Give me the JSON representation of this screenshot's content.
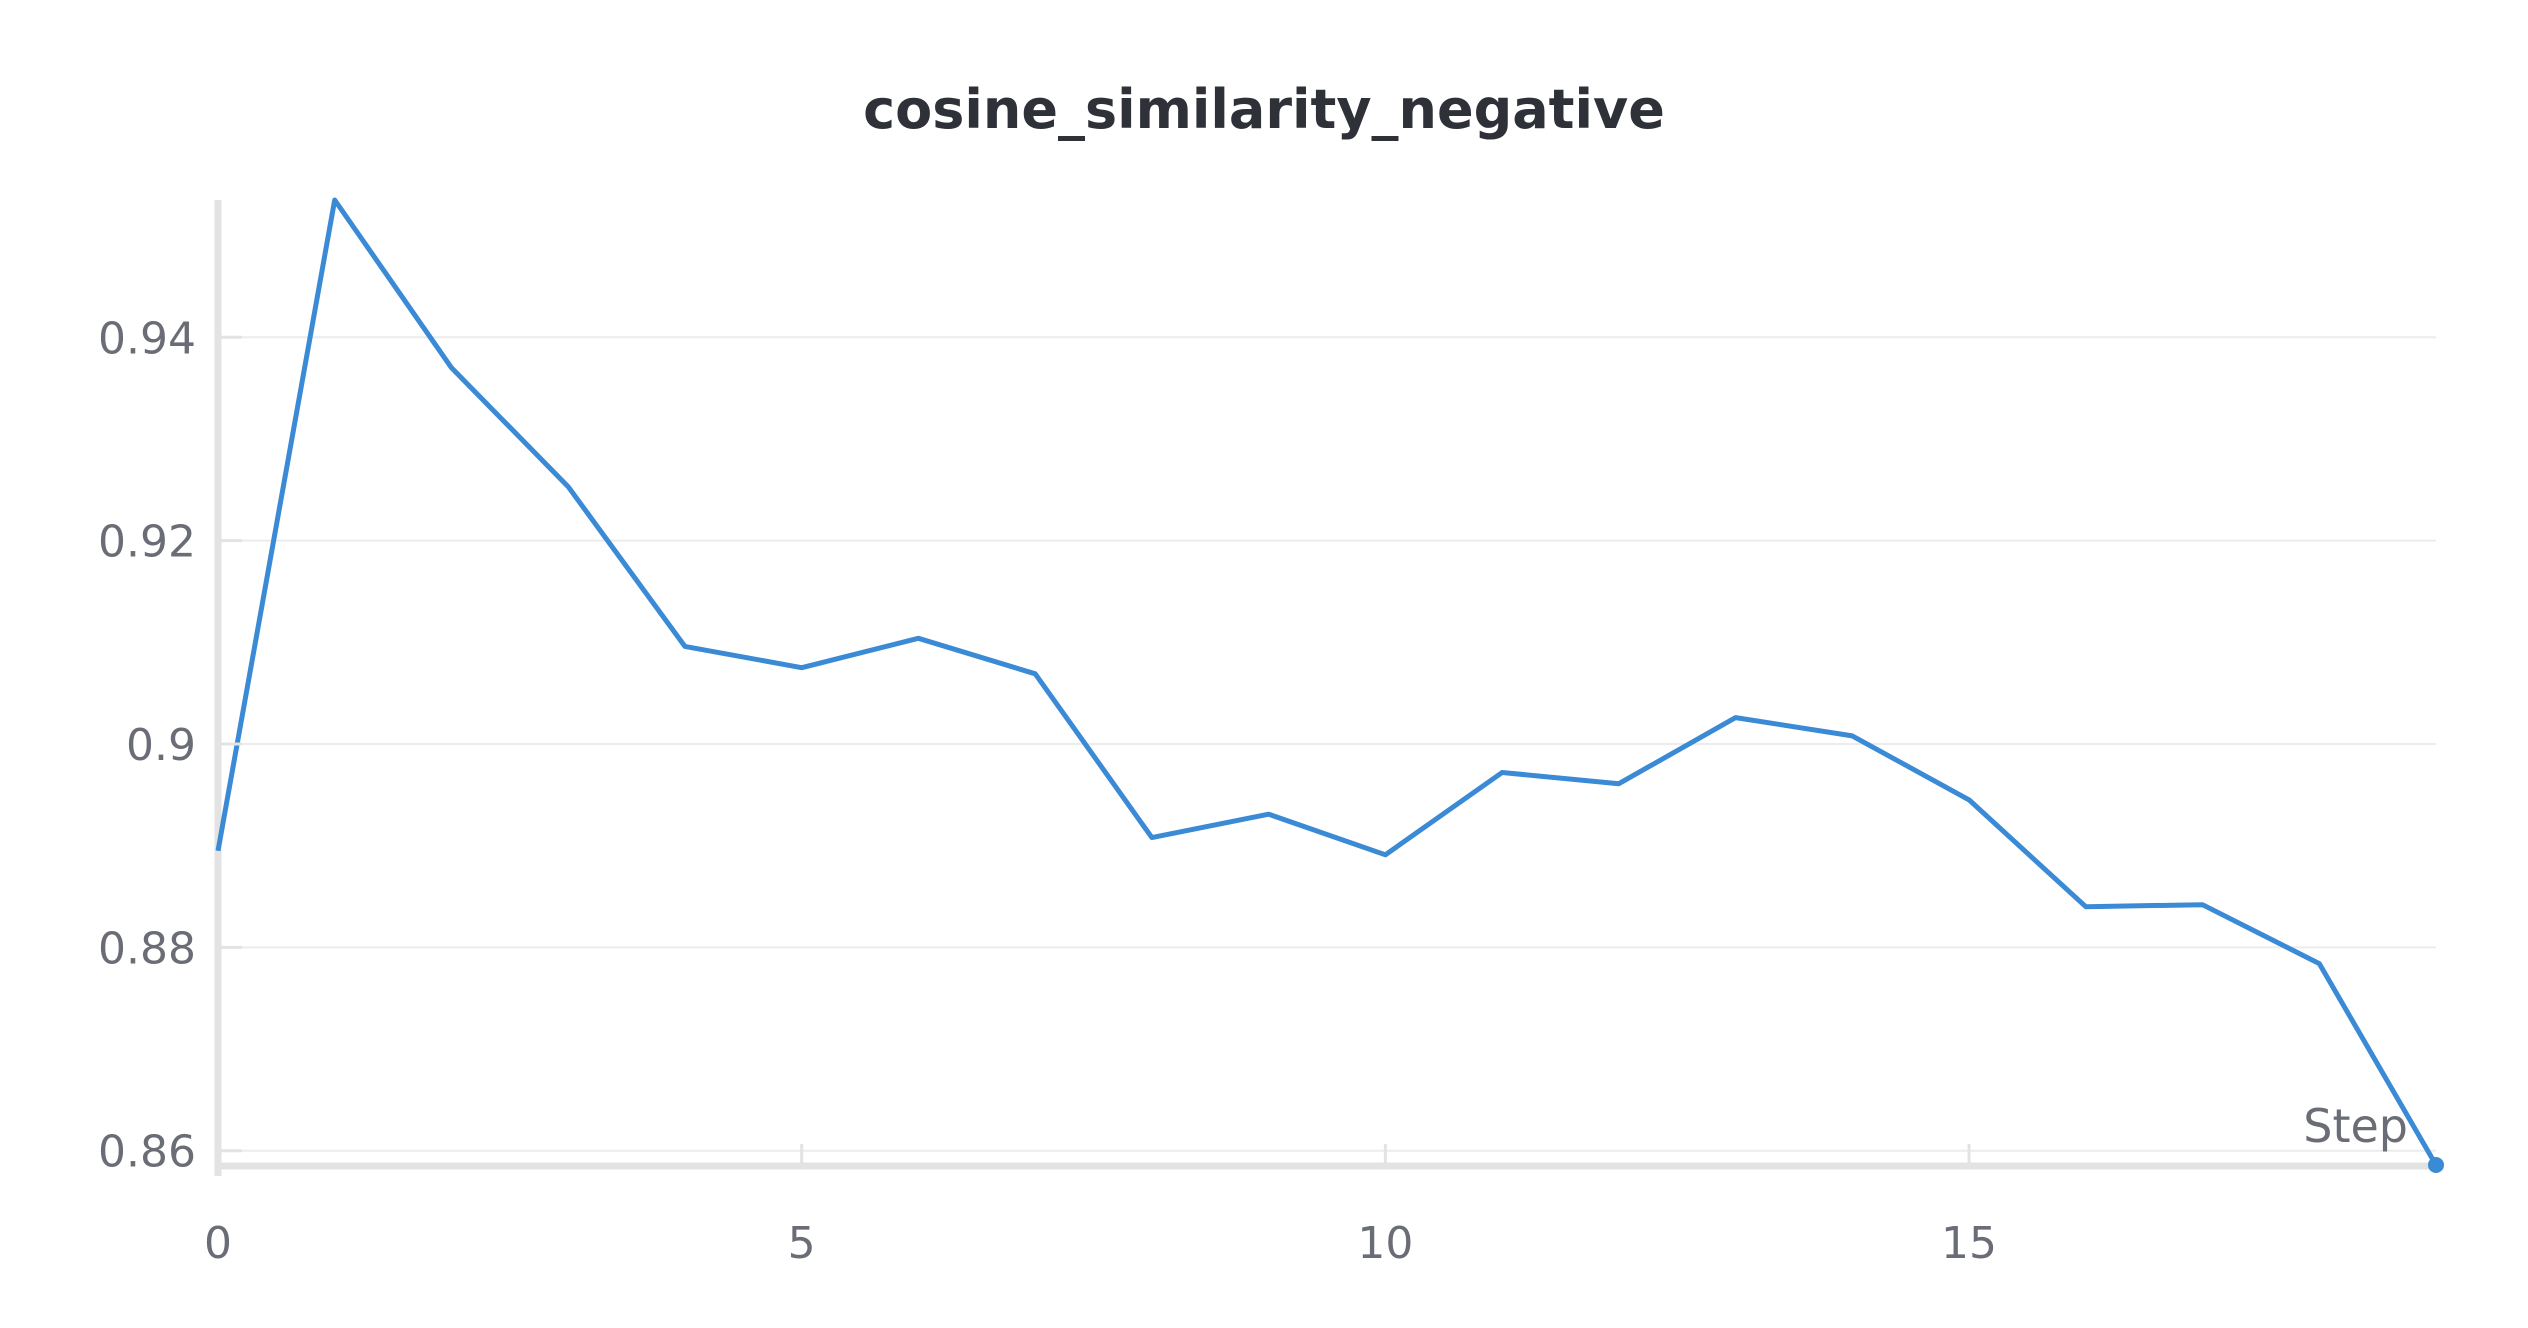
{
  "chart_data": {
    "type": "line",
    "title": "cosine_similarity_negative",
    "xlabel": "Step",
    "ylabel": "",
    "xlim": [
      0,
      19
    ],
    "ylim": [
      0.8585,
      0.9535
    ],
    "x_ticks": [
      0,
      5,
      10,
      15
    ],
    "y_ticks": [
      0.86,
      0.88,
      0.9,
      0.92,
      0.94
    ],
    "y_tick_labels": [
      "0.86",
      "0.88",
      "0.9",
      "0.92",
      "0.94"
    ],
    "grid": true,
    "series": [
      {
        "color": "#3b8ad6",
        "x": [
          0,
          1,
          2,
          3,
          4,
          5,
          6,
          7,
          8,
          9,
          10,
          11,
          12,
          13,
          14,
          15,
          16,
          17,
          18,
          19
        ],
        "y": [
          0.8895,
          0.9535,
          0.937,
          0.9253,
          0.9096,
          0.9075,
          0.9104,
          0.9069,
          0.8908,
          0.8931,
          0.8891,
          0.8972,
          0.8961,
          0.9026,
          0.9008,
          0.8945,
          0.884,
          0.8842,
          0.8784,
          0.8586
        ]
      }
    ]
  }
}
